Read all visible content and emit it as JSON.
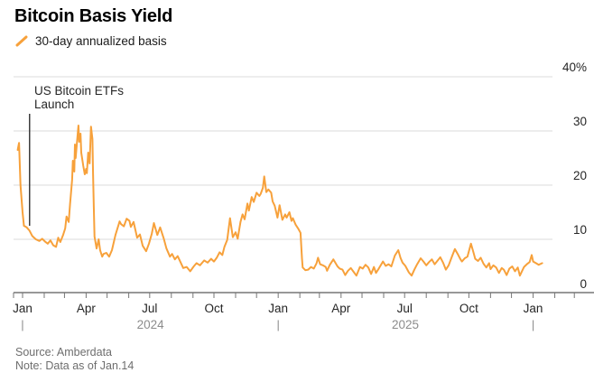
{
  "header": {
    "title": "Bitcoin Basis Yield"
  },
  "legend": {
    "label": "30-day annualized basis",
    "marker_color": "#F7A13B"
  },
  "annotation": {
    "line1": "US Bitcoin ETFs",
    "line2": "Launch",
    "date": "2024-01-11"
  },
  "footer": {
    "source": "Source: Amberdata",
    "note": "Note: Data as of Jan.14"
  },
  "colors": {
    "line": "#F7A13B",
    "grid": "#DBDBDB",
    "axis": "#767676",
    "tick_label": "#262626",
    "muted_label": "#8C8C8C",
    "annotation_rule": "#3D3D3D",
    "background": "#FFFFFF"
  },
  "chart_data": {
    "type": "line",
    "title": "Bitcoin Basis Yield",
    "series_name": "30-day annualized basis",
    "unit": "%",
    "grid": true,
    "legend_position": "top-left",
    "ylim": [
      0,
      40
    ],
    "y_ticks": [
      {
        "value": 40,
        "label": "40%"
      },
      {
        "value": 30,
        "label": "30"
      },
      {
        "value": 20,
        "label": "20"
      },
      {
        "value": 10,
        "label": "10"
      },
      {
        "value": 0,
        "label": "0"
      }
    ],
    "x_ticks": [
      {
        "label": "Jan",
        "date": "2024-01-01"
      },
      {
        "label": "Apr",
        "date": "2024-04-01"
      },
      {
        "label": "Jul",
        "date": "2024-07-01"
      },
      {
        "label": "Oct",
        "date": "2024-10-01"
      },
      {
        "label": "Jan",
        "date": "2025-01-01"
      },
      {
        "label": "Apr",
        "date": "2025-04-01"
      },
      {
        "label": "Jul",
        "date": "2025-07-01"
      },
      {
        "label": "Oct",
        "date": "2025-10-01"
      },
      {
        "label": "Jan",
        "date": "2026-01-01"
      }
    ],
    "year_labels": [
      {
        "label": "2024",
        "date": "2024-07-02"
      },
      {
        "label": "2025",
        "date": "2025-07-02"
      }
    ],
    "year_separators": [
      "2024-01-01",
      "2025-01-01",
      "2026-01-01"
    ],
    "points": [
      [
        "2023-12-25",
        26.5
      ],
      [
        "2023-12-27",
        27.8
      ],
      [
        "2023-12-29",
        20.0
      ],
      [
        "2024-01-01",
        15.0
      ],
      [
        "2024-01-03",
        12.5
      ],
      [
        "2024-01-07",
        12.2
      ],
      [
        "2024-01-11",
        11.6
      ],
      [
        "2024-01-15",
        10.6
      ],
      [
        "2024-01-20",
        10.0
      ],
      [
        "2024-01-25",
        9.7
      ],
      [
        "2024-01-29",
        10.1
      ],
      [
        "2024-02-02",
        9.6
      ],
      [
        "2024-02-06",
        9.2
      ],
      [
        "2024-02-10",
        9.8
      ],
      [
        "2024-02-14",
        8.9
      ],
      [
        "2024-02-18",
        8.6
      ],
      [
        "2024-02-21",
        10.3
      ],
      [
        "2024-02-24",
        9.5
      ],
      [
        "2024-02-28",
        10.8
      ],
      [
        "2024-03-02",
        12.0
      ],
      [
        "2024-03-04",
        14.2
      ],
      [
        "2024-03-07",
        13.2
      ],
      [
        "2024-03-09",
        16.5
      ],
      [
        "2024-03-12",
        21.0
      ],
      [
        "2024-03-13",
        24.5
      ],
      [
        "2024-03-15",
        22.5
      ],
      [
        "2024-03-16",
        27.5
      ],
      [
        "2024-03-17",
        25.0
      ],
      [
        "2024-03-20",
        29.5
      ],
      [
        "2024-03-21",
        31.0
      ],
      [
        "2024-03-22",
        28.0
      ],
      [
        "2024-03-24",
        29.5
      ],
      [
        "2024-03-25",
        26.0
      ],
      [
        "2024-03-28",
        23.5
      ],
      [
        "2024-03-30",
        22.0
      ],
      [
        "2024-04-01",
        23.0
      ],
      [
        "2024-04-02",
        22.2
      ],
      [
        "2024-04-04",
        26.0
      ],
      [
        "2024-04-06",
        24.0
      ],
      [
        "2024-04-08",
        30.8
      ],
      [
        "2024-04-10",
        28.5
      ],
      [
        "2024-04-11",
        22.0
      ],
      [
        "2024-04-12",
        16.0
      ],
      [
        "2024-04-13",
        10.5
      ],
      [
        "2024-04-16",
        8.3
      ],
      [
        "2024-04-19",
        10.0
      ],
      [
        "2024-04-21",
        8.0
      ],
      [
        "2024-04-24",
        6.8
      ],
      [
        "2024-04-26",
        7.3
      ],
      [
        "2024-04-30",
        7.5
      ],
      [
        "2024-05-04",
        6.8
      ],
      [
        "2024-05-08",
        8.0
      ],
      [
        "2024-05-13",
        10.8
      ],
      [
        "2024-05-19",
        13.3
      ],
      [
        "2024-05-21",
        12.8
      ],
      [
        "2024-05-25",
        12.4
      ],
      [
        "2024-05-29",
        13.8
      ],
      [
        "2024-06-02",
        13.4
      ],
      [
        "2024-06-04",
        12.3
      ],
      [
        "2024-06-08",
        13.2
      ],
      [
        "2024-06-13",
        10.3
      ],
      [
        "2024-06-17",
        10.9
      ],
      [
        "2024-06-21",
        8.8
      ],
      [
        "2024-06-26",
        7.8
      ],
      [
        "2024-06-30",
        9.2
      ],
      [
        "2024-07-04",
        11.0
      ],
      [
        "2024-07-07",
        13.0
      ],
      [
        "2024-07-12",
        10.8
      ],
      [
        "2024-07-16",
        12.2
      ],
      [
        "2024-07-21",
        10.2
      ],
      [
        "2024-07-25",
        8.3
      ],
      [
        "2024-07-30",
        6.8
      ],
      [
        "2024-08-02",
        7.3
      ],
      [
        "2024-08-06",
        6.3
      ],
      [
        "2024-08-10",
        6.9
      ],
      [
        "2024-08-14",
        5.8
      ],
      [
        "2024-08-18",
        4.7
      ],
      [
        "2024-08-23",
        4.9
      ],
      [
        "2024-08-28",
        4.1
      ],
      [
        "2024-09-02",
        5.0
      ],
      [
        "2024-09-06",
        5.6
      ],
      [
        "2024-09-11",
        5.2
      ],
      [
        "2024-09-17",
        6.1
      ],
      [
        "2024-09-22",
        5.7
      ],
      [
        "2024-09-27",
        6.4
      ],
      [
        "2024-10-01",
        5.9
      ],
      [
        "2024-10-05",
        6.6
      ],
      [
        "2024-10-09",
        7.6
      ],
      [
        "2024-10-13",
        7.1
      ],
      [
        "2024-10-16",
        8.6
      ],
      [
        "2024-10-20",
        9.9
      ],
      [
        "2024-10-24",
        13.9
      ],
      [
        "2024-10-28",
        10.4
      ],
      [
        "2024-11-01",
        11.3
      ],
      [
        "2024-11-04",
        10.1
      ],
      [
        "2024-11-08",
        13.2
      ],
      [
        "2024-11-11",
        14.6
      ],
      [
        "2024-11-14",
        13.7
      ],
      [
        "2024-11-18",
        16.6
      ],
      [
        "2024-11-20",
        15.3
      ],
      [
        "2024-11-24",
        17.8
      ],
      [
        "2024-11-27",
        16.9
      ],
      [
        "2024-12-01",
        18.6
      ],
      [
        "2024-12-05",
        18.0
      ],
      [
        "2024-12-07",
        18.4
      ],
      [
        "2024-12-10",
        19.5
      ],
      [
        "2024-12-12",
        21.6
      ],
      [
        "2024-12-15",
        18.7
      ],
      [
        "2024-12-18",
        19.2
      ],
      [
        "2024-12-22",
        18.6
      ],
      [
        "2024-12-24",
        17.0
      ],
      [
        "2024-12-27",
        16.2
      ],
      [
        "2024-12-31",
        14.0
      ],
      [
        "2025-01-03",
        16.3
      ],
      [
        "2025-01-07",
        13.6
      ],
      [
        "2025-01-11",
        14.6
      ],
      [
        "2025-01-13",
        14.0
      ],
      [
        "2025-01-17",
        15.0
      ],
      [
        "2025-01-20",
        13.4
      ],
      [
        "2025-01-22",
        13.9
      ],
      [
        "2025-01-26",
        12.7
      ],
      [
        "2025-01-30",
        11.9
      ],
      [
        "2025-02-02",
        11.2
      ],
      [
        "2025-02-04",
        6.5
      ],
      [
        "2025-02-05",
        4.8
      ],
      [
        "2025-02-09",
        4.3
      ],
      [
        "2025-02-13",
        4.4
      ],
      [
        "2025-02-17",
        4.9
      ],
      [
        "2025-02-21",
        4.6
      ],
      [
        "2025-02-25",
        5.6
      ],
      [
        "2025-02-27",
        6.6
      ],
      [
        "2025-03-02",
        5.4
      ],
      [
        "2025-03-06",
        5.2
      ],
      [
        "2025-03-10",
        4.9
      ],
      [
        "2025-03-12",
        4.2
      ],
      [
        "2025-03-16",
        5.3
      ],
      [
        "2025-03-21",
        6.3
      ],
      [
        "2025-03-27",
        5.0
      ],
      [
        "2025-03-30",
        4.6
      ],
      [
        "2025-04-03",
        4.4
      ],
      [
        "2025-04-07",
        3.4
      ],
      [
        "2025-04-11",
        4.2
      ],
      [
        "2025-04-15",
        4.7
      ],
      [
        "2025-04-19",
        4.0
      ],
      [
        "2025-04-23",
        3.3
      ],
      [
        "2025-04-28",
        4.9
      ],
      [
        "2025-05-02",
        4.6
      ],
      [
        "2025-05-06",
        5.3
      ],
      [
        "2025-05-10",
        4.8
      ],
      [
        "2025-05-14",
        3.6
      ],
      [
        "2025-05-18",
        4.9
      ],
      [
        "2025-05-21",
        3.8
      ],
      [
        "2025-05-25",
        4.6
      ],
      [
        "2025-05-31",
        5.9
      ],
      [
        "2025-06-04",
        5.1
      ],
      [
        "2025-06-08",
        5.4
      ],
      [
        "2025-06-12",
        5.0
      ],
      [
        "2025-06-17",
        7.0
      ],
      [
        "2025-06-22",
        8.0
      ],
      [
        "2025-06-25",
        6.6
      ],
      [
        "2025-06-28",
        5.7
      ],
      [
        "2025-07-02",
        5.1
      ],
      [
        "2025-07-07",
        3.9
      ],
      [
        "2025-07-11",
        3.3
      ],
      [
        "2025-07-15",
        4.4
      ],
      [
        "2025-07-19",
        5.4
      ],
      [
        "2025-07-24",
        6.5
      ],
      [
        "2025-07-28",
        5.9
      ],
      [
        "2025-08-01",
        5.2
      ],
      [
        "2025-08-05",
        5.8
      ],
      [
        "2025-08-09",
        6.3
      ],
      [
        "2025-08-13",
        5.4
      ],
      [
        "2025-08-18",
        6.2
      ],
      [
        "2025-08-21",
        6.7
      ],
      [
        "2025-08-25",
        5.7
      ],
      [
        "2025-08-29",
        4.4
      ],
      [
        "2025-09-02",
        5.2
      ],
      [
        "2025-09-07",
        6.9
      ],
      [
        "2025-09-11",
        8.2
      ],
      [
        "2025-09-15",
        7.3
      ],
      [
        "2025-09-19",
        6.3
      ],
      [
        "2025-09-21",
        5.9
      ],
      [
        "2025-09-25",
        6.5
      ],
      [
        "2025-09-29",
        6.8
      ],
      [
        "2025-10-04",
        9.2
      ],
      [
        "2025-10-08",
        7.4
      ],
      [
        "2025-10-10",
        6.4
      ],
      [
        "2025-10-14",
        6.0
      ],
      [
        "2025-10-18",
        6.6
      ],
      [
        "2025-10-22",
        5.5
      ],
      [
        "2025-10-26",
        4.8
      ],
      [
        "2025-10-30",
        5.6
      ],
      [
        "2025-11-01",
        4.5
      ],
      [
        "2025-11-05",
        5.2
      ],
      [
        "2025-11-09",
        4.8
      ],
      [
        "2025-11-13",
        3.8
      ],
      [
        "2025-11-17",
        4.7
      ],
      [
        "2025-11-20",
        4.4
      ],
      [
        "2025-11-24",
        3.4
      ],
      [
        "2025-11-28",
        4.6
      ],
      [
        "2025-12-02",
        5.0
      ],
      [
        "2025-12-06",
        4.1
      ],
      [
        "2025-12-10",
        4.8
      ],
      [
        "2025-12-13",
        3.3
      ],
      [
        "2025-12-19",
        4.9
      ],
      [
        "2025-12-23",
        5.4
      ],
      [
        "2025-12-27",
        5.8
      ],
      [
        "2025-12-30",
        7.1
      ],
      [
        "2026-01-01",
        5.9
      ],
      [
        "2026-01-05",
        5.6
      ],
      [
        "2026-01-09",
        5.3
      ],
      [
        "2026-01-14",
        5.6
      ]
    ]
  }
}
